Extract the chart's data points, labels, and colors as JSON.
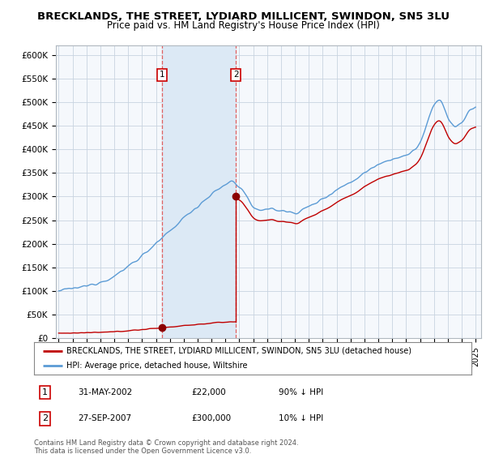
{
  "title": "BRECKLANDS, THE STREET, LYDIARD MILLICENT, SWINDON, SN5 3LU",
  "subtitle": "Price paid vs. HM Land Registry's House Price Index (HPI)",
  "title_fontsize": 9.5,
  "subtitle_fontsize": 8.5,
  "background_color": "#ffffff",
  "plot_bg_color": "#ffffff",
  "hpi_color": "#5b9bd5",
  "price_color": "#c00000",
  "marker_color": "#8b0000",
  "shaded_region_color": "#dce9f5",
  "dashed_line_color": "#e06060",
  "ylim": [
    0,
    620000
  ],
  "yticks": [
    0,
    50000,
    100000,
    150000,
    200000,
    250000,
    300000,
    350000,
    400000,
    450000,
    500000,
    550000,
    600000
  ],
  "ytick_labels": [
    "£0",
    "£50K",
    "£100K",
    "£150K",
    "£200K",
    "£250K",
    "£300K",
    "£350K",
    "£400K",
    "£450K",
    "£500K",
    "£550K",
    "£600K"
  ],
  "transaction1_date": 2002.42,
  "transaction1_price": 22000,
  "transaction1_label": "1",
  "transaction2_date": 2007.75,
  "transaction2_price": 300000,
  "transaction2_label": "2",
  "legend_line1": "BRECKLANDS, THE STREET, LYDIARD MILLICENT, SWINDON, SN5 3LU (detached house)",
  "legend_line2": "HPI: Average price, detached house, Wiltshire",
  "table_row1": [
    "1",
    "31-MAY-2002",
    "£22,000",
    "90% ↓ HPI"
  ],
  "table_row2": [
    "2",
    "27-SEP-2007",
    "£300,000",
    "10% ↓ HPI"
  ],
  "footer1": "Contains HM Land Registry data © Crown copyright and database right 2024.",
  "footer2": "This data is licensed under the Open Government Licence v3.0."
}
